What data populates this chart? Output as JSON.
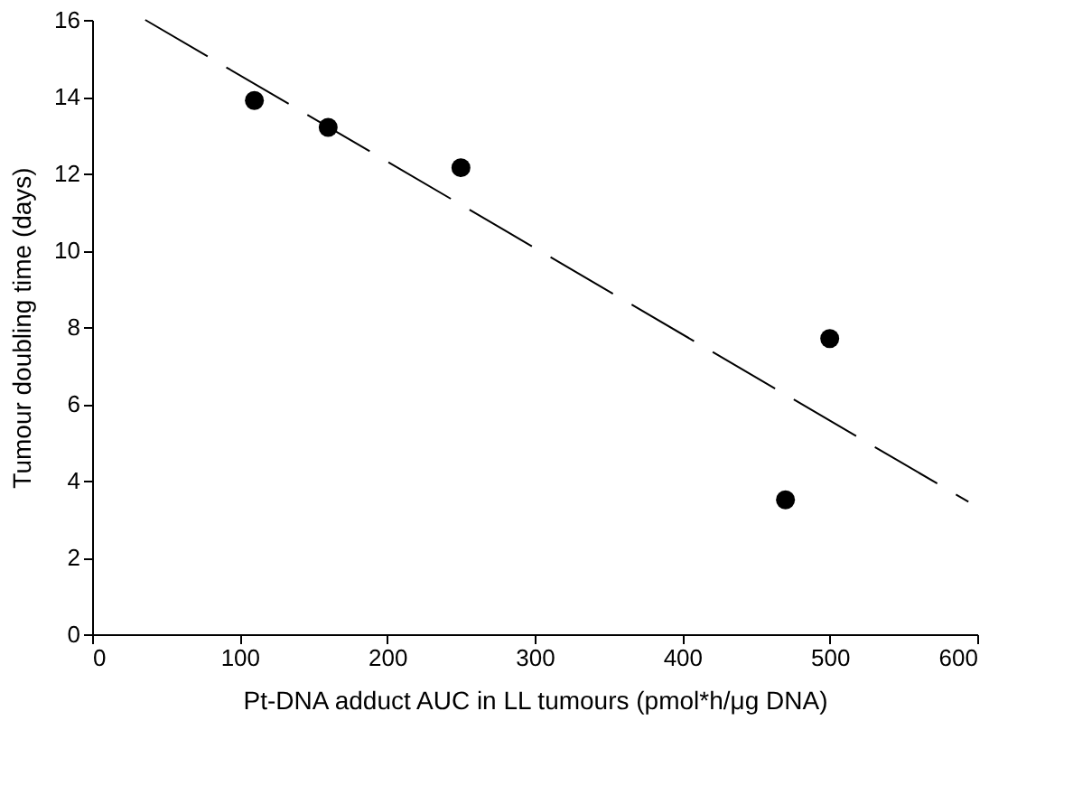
{
  "chart_data": {
    "type": "scatter",
    "xlabel": "Pt-DNA adduct AUC in LL tumours (pmol*h/μg DNA)",
    "ylabel": "Tumour doubling time (days)",
    "xlim": [
      0,
      600
    ],
    "xticks": [
      0,
      100,
      200,
      300,
      400,
      500,
      600
    ],
    "ylim": [
      0,
      16
    ],
    "yticks": [
      0,
      2,
      4,
      6,
      8,
      10,
      12,
      14,
      16
    ],
    "grid": false,
    "series": [
      {
        "color": "#000000",
        "marker": "circle",
        "x": [
          110,
          160,
          250,
          470,
          500
        ],
        "values": [
          13.9,
          13.2,
          12.15,
          3.5,
          7.7
        ]
      },
      {
        "type": "line",
        "color": "#000000",
        "line_style": "dashed",
        "marker": "none",
        "x": [
          36,
          594
        ],
        "values": [
          16,
          3.45
        ]
      }
    ]
  }
}
